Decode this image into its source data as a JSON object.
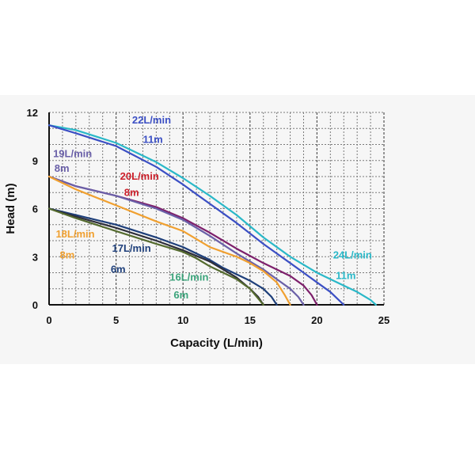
{
  "chart_data": {
    "type": "line",
    "xlabel": "Capacity (L/min)",
    "ylabel": "Head (m)",
    "xlim": [
      0,
      25
    ],
    "ylim": [
      0,
      12
    ],
    "xticks": [
      "0",
      "5",
      "10",
      "15",
      "20",
      "25"
    ],
    "yticks": [
      "0",
      "3",
      "6",
      "9",
      "12"
    ],
    "grid": true,
    "series": [
      {
        "color": "#2ab8c8",
        "x": [
          0,
          2,
          5,
          8,
          10,
          12,
          14,
          16,
          18,
          20,
          22,
          23,
          24,
          24.4
        ],
        "y": [
          11.2,
          10.9,
          10.1,
          8.9,
          7.9,
          6.8,
          5.6,
          4.2,
          3.0,
          2.0,
          1.2,
          0.8,
          0.3,
          0
        ]
      },
      {
        "color": "#3b4fc4",
        "x": [
          0,
          2,
          5,
          8,
          10,
          12,
          14,
          16,
          18,
          20,
          21,
          22
        ],
        "y": [
          11.2,
          10.7,
          9.9,
          8.6,
          7.5,
          6.3,
          5.1,
          3.8,
          2.6,
          1.4,
          0.8,
          0
        ]
      },
      {
        "color": "#7d1f6b",
        "x": [
          0,
          2,
          5,
          8,
          10,
          12,
          14,
          16,
          18,
          19,
          19.6,
          20
        ],
        "y": [
          8.0,
          7.4,
          6.8,
          6.1,
          5.4,
          4.5,
          3.5,
          2.6,
          1.8,
          1.2,
          0.6,
          0
        ]
      },
      {
        "color": "#6a60a8",
        "x": [
          0,
          2,
          5,
          8,
          10,
          12,
          14,
          16,
          17,
          18,
          18.6,
          19
        ],
        "y": [
          8.0,
          7.4,
          6.8,
          6.0,
          5.3,
          4.3,
          3.2,
          2.2,
          1.6,
          1.0,
          0.5,
          0
        ]
      },
      {
        "color": "#f0a030",
        "x": [
          0,
          2,
          5,
          8,
          10,
          12,
          14,
          15,
          16,
          17,
          17.6,
          18
        ],
        "y": [
          8.0,
          7.2,
          6.2,
          5.2,
          4.6,
          3.6,
          3.0,
          2.6,
          2.1,
          1.4,
          0.6,
          0
        ]
      },
      {
        "color": "#1e3f7a",
        "x": [
          0,
          2,
          5,
          8,
          10,
          12,
          13,
          14,
          15,
          16,
          16.6,
          17
        ],
        "y": [
          6.0,
          5.6,
          5.0,
          4.2,
          3.6,
          2.8,
          2.3,
          1.9,
          1.5,
          1.0,
          0.5,
          0
        ]
      },
      {
        "color": "#2e2e3a",
        "x": [
          0,
          2,
          5,
          8,
          10,
          12,
          13,
          14,
          15,
          15.6,
          16
        ],
        "y": [
          6.0,
          5.5,
          4.8,
          4.0,
          3.4,
          2.7,
          2.2,
          1.7,
          1.0,
          0.5,
          0
        ]
      },
      {
        "color": "#556b2f",
        "x": [
          0,
          2,
          5,
          8,
          10,
          11,
          12,
          13,
          14,
          15,
          15.6,
          16
        ],
        "y": [
          6.0,
          5.4,
          4.6,
          3.8,
          3.3,
          2.9,
          2.4,
          2.0,
          1.6,
          1.0,
          0.4,
          0
        ]
      }
    ],
    "annotations": [
      {
        "text": "22L/min",
        "color": "#3b4fc4",
        "x": 6.2,
        "y": 11.3
      },
      {
        "text": "11m",
        "color": "#3b4fc4",
        "x": 7.0,
        "y": 10.1
      },
      {
        "text": "19L/min",
        "color": "#6a60a8",
        "x": 0.3,
        "y": 9.2
      },
      {
        "text": "8m",
        "color": "#6a60a8",
        "x": 0.4,
        "y": 8.3
      },
      {
        "text": "20L/min",
        "color": "#cc1f2a",
        "x": 5.3,
        "y": 7.8
      },
      {
        "text": "8m",
        "color": "#cc1f2a",
        "x": 5.6,
        "y": 6.8
      },
      {
        "text": "18L/min",
        "color": "#f0a030",
        "x": 0.5,
        "y": 4.2
      },
      {
        "text": "8m",
        "color": "#f0a030",
        "x": 0.8,
        "y": 2.9
      },
      {
        "text": "17L/min",
        "color": "#1e3f7a",
        "x": 4.7,
        "y": 3.3
      },
      {
        "text": "6m",
        "color": "#1e3f7a",
        "x": 4.6,
        "y": 2.0
      },
      {
        "text": "16L/min",
        "color": "#3aa37a",
        "x": 9.0,
        "y": 1.5
      },
      {
        "text": "6m",
        "color": "#3aa37a",
        "x": 9.3,
        "y": 0.4
      },
      {
        "text": "24L/min",
        "color": "#2ab8c8",
        "x": 21.2,
        "y": 2.9
      },
      {
        "text": "11m",
        "color": "#2ab8c8",
        "x": 21.4,
        "y": 1.6
      }
    ]
  }
}
